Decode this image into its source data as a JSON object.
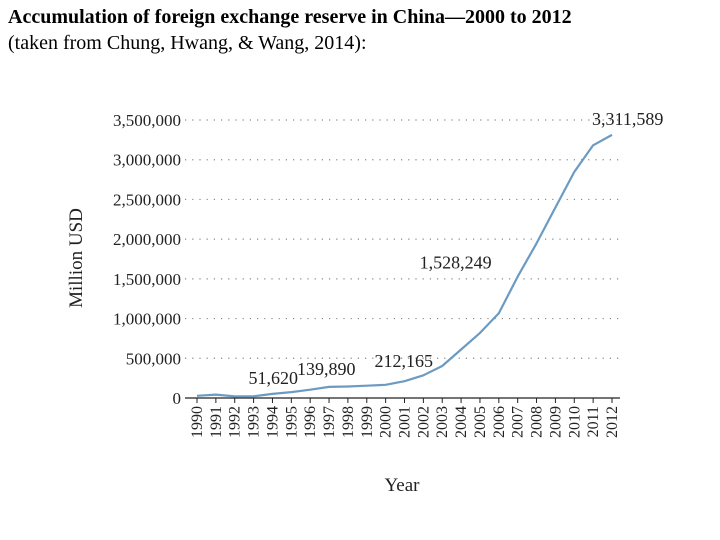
{
  "header": {
    "title": "Accumulation of foreign exchange reserve in China—2000 to 2012",
    "subtitle": "(taken from Chung, Hwang, & Wang, 2014):"
  },
  "colors": {
    "line": "#6b9bc3",
    "grid": "#888888",
    "axis": "#222222"
  },
  "chart_data": {
    "type": "line",
    "title": "",
    "xlabel": "Year",
    "ylabel": "Million USD",
    "ylim": [
      0,
      3500000
    ],
    "yticks": [
      0,
      500000,
      1000000,
      1500000,
      2000000,
      2500000,
      3000000,
      3500000
    ],
    "ytick_labels": [
      "0",
      "500,000",
      "1,000,000",
      "1,500,000",
      "2,000,000",
      "2,500,000",
      "3,000,000",
      "3,500,000"
    ],
    "grid": true,
    "x": [
      1990,
      1991,
      1992,
      1993,
      1994,
      1995,
      1996,
      1997,
      1998,
      1999,
      2000,
      2001,
      2002,
      2003,
      2004,
      2005,
      2006,
      2007,
      2008,
      2009,
      2010,
      2011,
      2012
    ],
    "series": [
      {
        "values": [
          28000,
          43000,
          20000,
          22000,
          52000,
          74000,
          105000,
          140000,
          145000,
          155000,
          166000,
          212000,
          286000,
          403000,
          610000,
          819000,
          1066000,
          1528000,
          1946000,
          2399000,
          2847000,
          3181000,
          3312000
        ]
      }
    ],
    "annotations": [
      {
        "text": "51,620",
        "x": 1994,
        "y": 51620
      },
      {
        "text": "139,890",
        "x": 1997,
        "y": 139890
      },
      {
        "text": "212,165",
        "x": 2001,
        "y": 212165
      },
      {
        "text": "1,528,249",
        "x": 2007,
        "y": 1528249
      },
      {
        "text": "3,311,589",
        "x": 2012,
        "y": 3311589
      }
    ]
  }
}
